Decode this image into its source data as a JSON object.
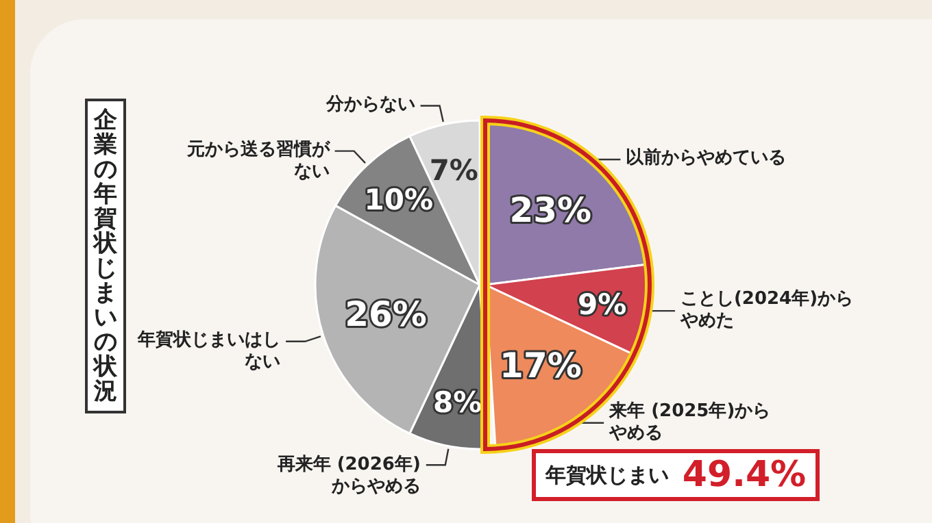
{
  "chart_data": {
    "type": "pie",
    "title": "企業の年賀状じまいの状況",
    "categories": [
      "以前からやめている",
      "ことし(2024年)からやめた",
      "来年 (2025年)からやめる",
      "再来年 (2026年)からやめる",
      "年賀状じまいはしない",
      "元から送る習慣がない",
      "分からない"
    ],
    "values": [
      23,
      9,
      17,
      8,
      26,
      10,
      7
    ],
    "colors": [
      "#8f7aa9",
      "#d2414e",
      "#ee8a5c",
      "#6f6f6f",
      "#b4b4b4",
      "#838383",
      "#d9d9d9"
    ],
    "value_labels": [
      "23%",
      "9%",
      "17%",
      "8%",
      "26%",
      "10%",
      "7%"
    ],
    "annotations": [
      "年賀状じまい 49.4%"
    ]
  }
}
